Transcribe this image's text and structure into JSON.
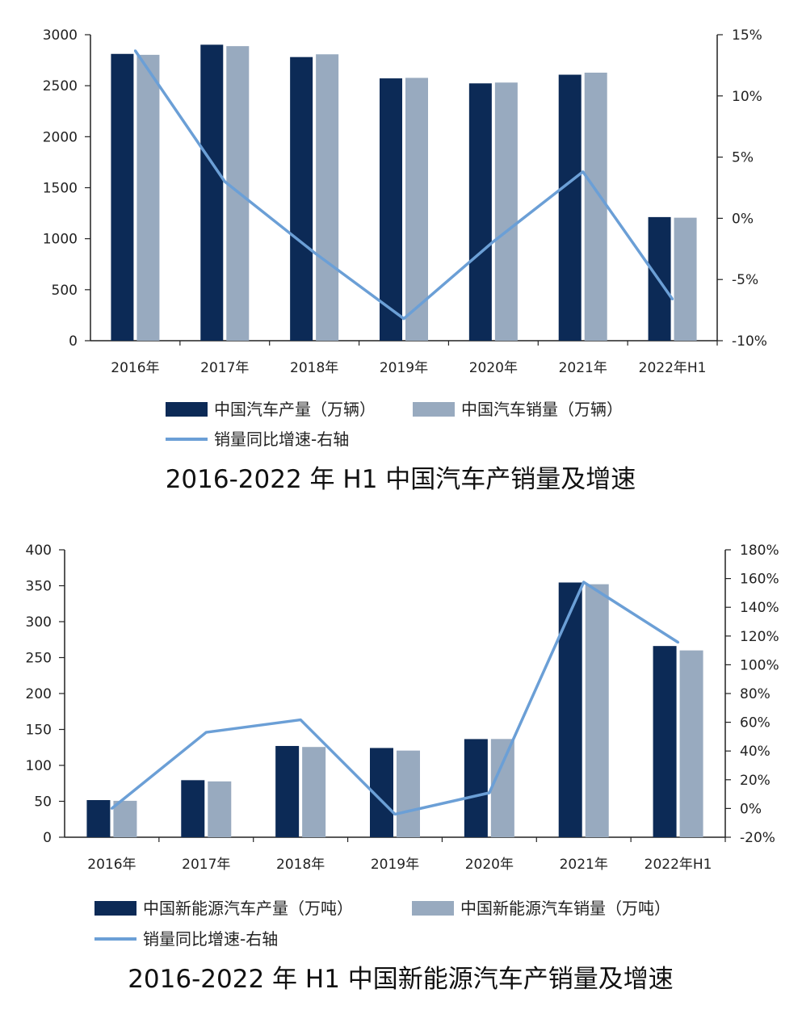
{
  "colors": {
    "production": "#0c2a56",
    "sales": "#98aabf",
    "growth": "#6b9fd6",
    "axis": "#222222"
  },
  "chart_data": [
    {
      "type": "bar",
      "title": "2016-2022 年 H1 中国汽车产销量及增速",
      "categories": [
        "2016年",
        "2017年",
        "2018年",
        "2019年",
        "2020年",
        "2021年",
        "2022年H1"
      ],
      "series": [
        {
          "name": "中国汽车产量（万辆）",
          "type": "bar",
          "axis": "left",
          "values": [
            2812,
            2902,
            2781,
            2572,
            2523,
            2608,
            1212
          ]
        },
        {
          "name": "中国汽车销量（万辆）",
          "type": "bar",
          "axis": "left",
          "values": [
            2803,
            2888,
            2808,
            2577,
            2531,
            2628,
            1206
          ]
        },
        {
          "name": "销量同比增速-右轴",
          "type": "line",
          "axis": "right",
          "values": [
            13.7,
            3.0,
            -2.8,
            -8.2,
            -1.9,
            3.8,
            -6.6
          ]
        }
      ],
      "y_left": {
        "min": 0,
        "max": 3000,
        "ticks": [
          "3000",
          "2500",
          "2000",
          "1500",
          "1000",
          "500",
          "0"
        ]
      },
      "y_right": {
        "min": -10,
        "max": 15,
        "ticks": [
          "15%",
          "10%",
          "5%",
          "0%",
          "-5%",
          "-10%"
        ]
      }
    },
    {
      "type": "bar",
      "title": "2016-2022 年 H1 中国新能源汽车产销量及增速",
      "categories": [
        "2016年",
        "2017年",
        "2018年",
        "2019年",
        "2020年",
        "2021年",
        "2022年H1"
      ],
      "series": [
        {
          "name": "中国新能源汽车产量（万吨）",
          "type": "bar",
          "axis": "left",
          "values": [
            51.7,
            79.4,
            127,
            124.2,
            136.6,
            354.5,
            266.1
          ]
        },
        {
          "name": "中国新能源汽车销量（万吨）",
          "type": "bar",
          "axis": "left",
          "values": [
            50.7,
            77.7,
            125.6,
            120.6,
            136.7,
            352.1,
            260
          ]
        },
        {
          "name": "销量同比增速-右轴",
          "type": "line",
          "axis": "right",
          "values": [
            0,
            53,
            61.7,
            -4,
            10.9,
            157.5,
            115.6
          ]
        }
      ],
      "y_left": {
        "min": 0,
        "max": 400,
        "ticks": [
          "400",
          "350",
          "300",
          "250",
          "200",
          "150",
          "100",
          "50",
          "0"
        ]
      },
      "y_right": {
        "min": -20,
        "max": 180,
        "ticks": [
          "180%",
          "160%",
          "140%",
          "120%",
          "100%",
          "80%",
          "60%",
          "40%",
          "20%",
          "0%",
          "-20%"
        ]
      }
    }
  ]
}
